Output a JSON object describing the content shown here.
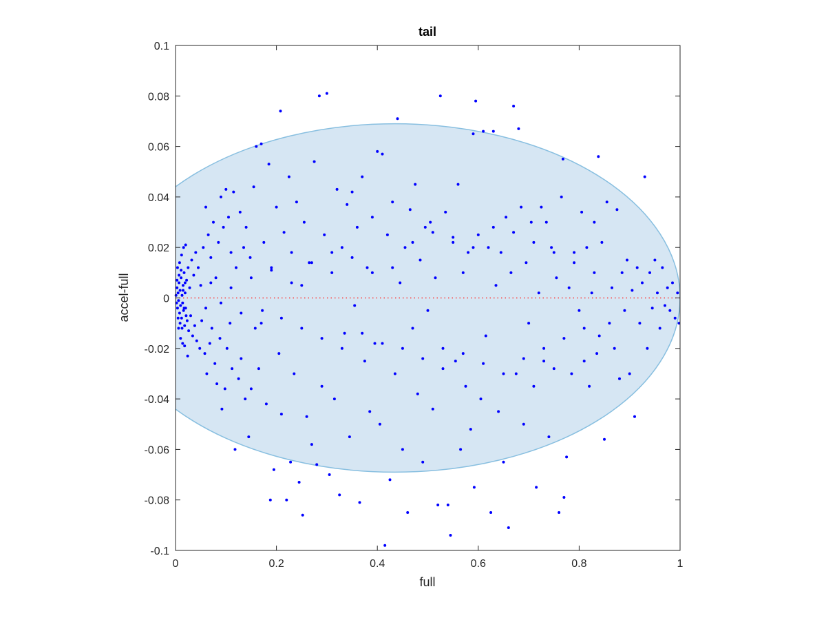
{
  "chart_data": {
    "type": "scatter",
    "title": "tail",
    "xlabel": "full",
    "ylabel": "accel-full",
    "xlim": [
      0,
      1
    ],
    "ylim": [
      -0.1,
      0.1
    ],
    "grid": false,
    "x_ticks": [
      0,
      0.2,
      0.4,
      0.6,
      0.8,
      1
    ],
    "x_tick_labels": [
      "0",
      "0.2",
      "0.4",
      "0.6",
      "0.8",
      "1"
    ],
    "y_ticks": [
      -0.1,
      -0.08,
      -0.06,
      -0.04,
      -0.02,
      0,
      0.02,
      0.04,
      0.06,
      0.08,
      0.1
    ],
    "y_tick_labels": [
      "-0.1",
      "-0.08",
      "-0.06",
      "-0.04",
      "-0.02",
      "0",
      "0.02",
      "0.04",
      "0.06",
      "0.08",
      "0.1"
    ],
    "colors": {
      "points": "#0000ff",
      "ellipse_fill": "#d6e6f3",
      "ellipse_edge": "#88bfe0",
      "zero_line": "#ff3333",
      "axes": "#262626"
    },
    "ellipse": {
      "center": [
        0.435,
        0.0
      ],
      "x_radius": 0.565,
      "y_radius": 0.069
    },
    "reference_line": {
      "y": 0,
      "x_range": [
        0,
        1
      ],
      "style": "dotted"
    },
    "points": [
      [
        0.001,
        0.001
      ],
      [
        0.002,
        -0.002
      ],
      [
        0.003,
        0.004
      ],
      [
        0.004,
        -0.004
      ],
      [
        0.005,
        0.002
      ],
      [
        0.006,
        -0.001
      ],
      [
        0.007,
        0.006
      ],
      [
        0.008,
        -0.006
      ],
      [
        0.009,
        0.003
      ],
      [
        0.01,
        -0.003
      ],
      [
        0.011,
        0.008
      ],
      [
        0.012,
        -0.008
      ],
      [
        0.013,
        0.001
      ],
      [
        0.014,
        -0.002
      ],
      [
        0.015,
        0.005
      ],
      [
        0.016,
        -0.005
      ],
      [
        0.017,
        0.01
      ],
      [
        0.018,
        -0.011
      ],
      [
        0.019,
        0.002
      ],
      [
        0.02,
        -0.004
      ],
      [
        0.022,
        0.007
      ],
      [
        0.023,
        -0.009
      ],
      [
        0.025,
        0.012
      ],
      [
        0.026,
        -0.013
      ],
      [
        0.028,
        0.004
      ],
      [
        0.03,
        -0.007
      ],
      [
        0.032,
        0.015
      ],
      [
        0.034,
        -0.015
      ],
      [
        0.036,
        0.009
      ],
      [
        0.038,
        -0.011
      ],
      [
        0.04,
        0.018
      ],
      [
        0.042,
        -0.017
      ],
      [
        0.045,
        0.012
      ],
      [
        0.048,
        -0.02
      ],
      [
        0.05,
        0.005
      ],
      [
        0.052,
        -0.009
      ],
      [
        0.055,
        0.02
      ],
      [
        0.058,
        -0.022
      ],
      [
        0.06,
        0.036
      ],
      [
        0.062,
        -0.03
      ],
      [
        0.065,
        0.025
      ],
      [
        0.068,
        -0.018
      ],
      [
        0.07,
        0.016
      ],
      [
        0.072,
        -0.012
      ],
      [
        0.075,
        0.03
      ],
      [
        0.078,
        -0.026
      ],
      [
        0.08,
        0.008
      ],
      [
        0.082,
        -0.034
      ],
      [
        0.085,
        0.022
      ],
      [
        0.088,
        -0.016
      ],
      [
        0.09,
        0.04
      ],
      [
        0.092,
        -0.044
      ],
      [
        0.095,
        0.028
      ],
      [
        0.098,
        -0.036
      ],
      [
        0.1,
        0.043
      ],
      [
        0.102,
        -0.02
      ],
      [
        0.105,
        0.032
      ],
      [
        0.108,
        -0.01
      ],
      [
        0.11,
        0.018
      ],
      [
        0.112,
        -0.028
      ],
      [
        0.115,
        0.042
      ],
      [
        0.118,
        -0.06
      ],
      [
        0.12,
        0.012
      ],
      [
        0.125,
        -0.032
      ],
      [
        0.128,
        0.034
      ],
      [
        0.13,
        -0.024
      ],
      [
        0.135,
        0.02
      ],
      [
        0.138,
        -0.04
      ],
      [
        0.14,
        0.028
      ],
      [
        0.145,
        -0.055
      ],
      [
        0.148,
        0.016
      ],
      [
        0.15,
        -0.036
      ],
      [
        0.155,
        0.044
      ],
      [
        0.158,
        -0.012
      ],
      [
        0.16,
        0.06
      ],
      [
        0.165,
        -0.028
      ],
      [
        0.17,
        0.061
      ],
      [
        0.172,
        -0.005
      ],
      [
        0.175,
        0.022
      ],
      [
        0.18,
        -0.042
      ],
      [
        0.185,
        0.053
      ],
      [
        0.188,
        -0.08
      ],
      [
        0.19,
        0.011
      ],
      [
        0.195,
        -0.068
      ],
      [
        0.2,
        0.036
      ],
      [
        0.205,
        -0.022
      ],
      [
        0.208,
        0.074
      ],
      [
        0.21,
        -0.046
      ],
      [
        0.215,
        0.026
      ],
      [
        0.22,
        -0.08
      ],
      [
        0.225,
        0.048
      ],
      [
        0.228,
        -0.065
      ],
      [
        0.23,
        0.018
      ],
      [
        0.235,
        -0.03
      ],
      [
        0.24,
        0.038
      ],
      [
        0.245,
        -0.073
      ],
      [
        0.25,
        0.005
      ],
      [
        0.252,
        -0.086
      ],
      [
        0.255,
        0.03
      ],
      [
        0.26,
        -0.047
      ],
      [
        0.265,
        0.014
      ],
      [
        0.27,
        -0.058
      ],
      [
        0.275,
        0.054
      ],
      [
        0.28,
        -0.066
      ],
      [
        0.285,
        0.08
      ],
      [
        0.29,
        -0.035
      ],
      [
        0.295,
        0.025
      ],
      [
        0.3,
        0.081
      ],
      [
        0.305,
        -0.07
      ],
      [
        0.31,
        0.01
      ],
      [
        0.315,
        -0.04
      ],
      [
        0.32,
        0.043
      ],
      [
        0.325,
        -0.078
      ],
      [
        0.33,
        0.02
      ],
      [
        0.335,
        -0.014
      ],
      [
        0.34,
        0.037
      ],
      [
        0.345,
        -0.055
      ],
      [
        0.35,
        0.042
      ],
      [
        0.355,
        -0.003
      ],
      [
        0.36,
        0.028
      ],
      [
        0.365,
        -0.081
      ],
      [
        0.37,
        0.048
      ],
      [
        0.375,
        -0.025
      ],
      [
        0.38,
        0.012
      ],
      [
        0.385,
        -0.045
      ],
      [
        0.39,
        0.032
      ],
      [
        0.395,
        -0.018
      ],
      [
        0.4,
        0.058
      ],
      [
        0.405,
        -0.05
      ],
      [
        0.41,
        0.057
      ],
      [
        0.415,
        -0.098
      ],
      [
        0.42,
        0.025
      ],
      [
        0.425,
        -0.072
      ],
      [
        0.43,
        0.038
      ],
      [
        0.435,
        -0.03
      ],
      [
        0.44,
        0.071
      ],
      [
        0.445,
        0.006
      ],
      [
        0.45,
        -0.06
      ],
      [
        0.455,
        0.02
      ],
      [
        0.46,
        -0.085
      ],
      [
        0.465,
        0.035
      ],
      [
        0.47,
        -0.012
      ],
      [
        0.475,
        0.045
      ],
      [
        0.48,
        -0.038
      ],
      [
        0.485,
        0.015
      ],
      [
        0.49,
        -0.065
      ],
      [
        0.495,
        0.028
      ],
      [
        0.5,
        -0.005
      ],
      [
        0.505,
        0.03
      ],
      [
        0.51,
        -0.044
      ],
      [
        0.515,
        0.008
      ],
      [
        0.52,
        -0.082
      ],
      [
        0.525,
        0.08
      ],
      [
        0.53,
        -0.02
      ],
      [
        0.535,
        0.034
      ],
      [
        0.54,
        -0.082
      ],
      [
        0.545,
        -0.094
      ],
      [
        0.55,
        0.022
      ],
      [
        0.555,
        -0.025
      ],
      [
        0.56,
        0.045
      ],
      [
        0.565,
        -0.06
      ],
      [
        0.57,
        0.01
      ],
      [
        0.575,
        -0.035
      ],
      [
        0.58,
        0.018
      ],
      [
        0.585,
        -0.052
      ],
      [
        0.59,
        0.065
      ],
      [
        0.592,
        -0.075
      ],
      [
        0.595,
        0.078
      ],
      [
        0.6,
        0.025
      ],
      [
        0.605,
        -0.04
      ],
      [
        0.61,
        0.066
      ],
      [
        0.615,
        -0.015
      ],
      [
        0.62,
        0.02
      ],
      [
        0.625,
        -0.085
      ],
      [
        0.63,
        0.066
      ],
      [
        0.635,
        0.005
      ],
      [
        0.64,
        -0.045
      ],
      [
        0.645,
        0.018
      ],
      [
        0.65,
        -0.065
      ],
      [
        0.655,
        0.032
      ],
      [
        0.66,
        -0.091
      ],
      [
        0.665,
        0.01
      ],
      [
        0.67,
        0.076
      ],
      [
        0.675,
        -0.03
      ],
      [
        0.68,
        0.067
      ],
      [
        0.685,
        0.036
      ],
      [
        0.69,
        -0.05
      ],
      [
        0.695,
        0.014
      ],
      [
        0.7,
        -0.01
      ],
      [
        0.705,
        0.03
      ],
      [
        0.71,
        -0.035
      ],
      [
        0.715,
        -0.075
      ],
      [
        0.72,
        0.002
      ],
      [
        0.725,
        0.036
      ],
      [
        0.73,
        -0.025
      ],
      [
        0.735,
        0.03
      ],
      [
        0.74,
        -0.055
      ],
      [
        0.745,
        0.02
      ],
      [
        0.75,
        -0.028
      ],
      [
        0.755,
        0.008
      ],
      [
        0.76,
        -0.085
      ],
      [
        0.765,
        0.04
      ],
      [
        0.768,
        0.055
      ],
      [
        0.77,
        -0.079
      ],
      [
        0.775,
        -0.063
      ],
      [
        0.78,
        0.004
      ],
      [
        0.785,
        -0.03
      ],
      [
        0.79,
        0.018
      ],
      [
        0.8,
        -0.005
      ],
      [
        0.805,
        0.034
      ],
      [
        0.81,
        -0.025
      ],
      [
        0.815,
        0.02
      ],
      [
        0.82,
        -0.035
      ],
      [
        0.825,
        0.002
      ],
      [
        0.83,
        0.03
      ],
      [
        0.835,
        -0.022
      ],
      [
        0.838,
        0.056
      ],
      [
        0.84,
        -0.015
      ],
      [
        0.845,
        0.022
      ],
      [
        0.85,
        -0.056
      ],
      [
        0.855,
        0.038
      ],
      [
        0.86,
        -0.01
      ],
      [
        0.865,
        0.004
      ],
      [
        0.87,
        -0.02
      ],
      [
        0.875,
        0.035
      ],
      [
        0.88,
        -0.032
      ],
      [
        0.885,
        0.01
      ],
      [
        0.89,
        -0.005
      ],
      [
        0.895,
        0.015
      ],
      [
        0.9,
        -0.03
      ],
      [
        0.905,
        0.003
      ],
      [
        0.91,
        -0.047
      ],
      [
        0.915,
        0.012
      ],
      [
        0.92,
        -0.01
      ],
      [
        0.925,
        0.006
      ],
      [
        0.93,
        0.048
      ],
      [
        0.935,
        -0.02
      ],
      [
        0.94,
        0.01
      ],
      [
        0.945,
        -0.004
      ],
      [
        0.95,
        0.015
      ],
      [
        0.955,
        0.002
      ],
      [
        0.96,
        -0.012
      ],
      [
        0.965,
        0.012
      ],
      [
        0.97,
        -0.003
      ],
      [
        0.975,
        0.004
      ],
      [
        0.98,
        -0.005
      ],
      [
        0.985,
        0.006
      ],
      [
        0.99,
        -0.008
      ],
      [
        0.995,
        0.002
      ],
      [
        0.998,
        -0.01
      ],
      [
        0.06,
        -0.004
      ],
      [
        0.07,
        0.006
      ],
      [
        0.09,
        -0.002
      ],
      [
        0.11,
        0.004
      ],
      [
        0.13,
        -0.006
      ],
      [
        0.15,
        0.008
      ],
      [
        0.17,
        -0.01
      ],
      [
        0.19,
        0.012
      ],
      [
        0.21,
        -0.008
      ],
      [
        0.23,
        0.006
      ],
      [
        0.25,
        -0.012
      ],
      [
        0.27,
        0.014
      ],
      [
        0.29,
        -0.016
      ],
      [
        0.31,
        0.018
      ],
      [
        0.33,
        -0.02
      ],
      [
        0.35,
        0.016
      ],
      [
        0.37,
        -0.014
      ],
      [
        0.39,
        0.01
      ],
      [
        0.41,
        -0.018
      ],
      [
        0.43,
        0.012
      ],
      [
        0.45,
        -0.02
      ],
      [
        0.47,
        0.022
      ],
      [
        0.49,
        -0.024
      ],
      [
        0.51,
        0.026
      ],
      [
        0.53,
        -0.028
      ],
      [
        0.55,
        0.024
      ],
      [
        0.57,
        -0.022
      ],
      [
        0.59,
        0.02
      ],
      [
        0.61,
        -0.026
      ],
      [
        0.63,
        0.028
      ],
      [
        0.65,
        -0.03
      ],
      [
        0.67,
        0.026
      ],
      [
        0.69,
        -0.024
      ],
      [
        0.71,
        0.022
      ],
      [
        0.73,
        -0.02
      ],
      [
        0.75,
        0.018
      ],
      [
        0.77,
        -0.016
      ],
      [
        0.79,
        0.014
      ],
      [
        0.81,
        -0.012
      ],
      [
        0.83,
        0.01
      ],
      [
        0.004,
        0.012
      ],
      [
        0.006,
        -0.012
      ],
      [
        0.008,
        0.014
      ],
      [
        0.01,
        -0.016
      ],
      [
        0.012,
        0.017
      ],
      [
        0.014,
        -0.018
      ],
      [
        0.016,
        0.02
      ],
      [
        0.018,
        -0.019
      ],
      [
        0.02,
        0.021
      ],
      [
        0.024,
        -0.023
      ],
      [
        0.003,
        0.007
      ],
      [
        0.005,
        -0.008
      ],
      [
        0.007,
        0.009
      ],
      [
        0.009,
        -0.01
      ],
      [
        0.011,
        0.011
      ],
      [
        0.013,
        -0.012
      ],
      [
        0.015,
        0.003
      ],
      [
        0.017,
        -0.004
      ],
      [
        0.019,
        0.006
      ],
      [
        0.021,
        -0.007
      ]
    ]
  }
}
